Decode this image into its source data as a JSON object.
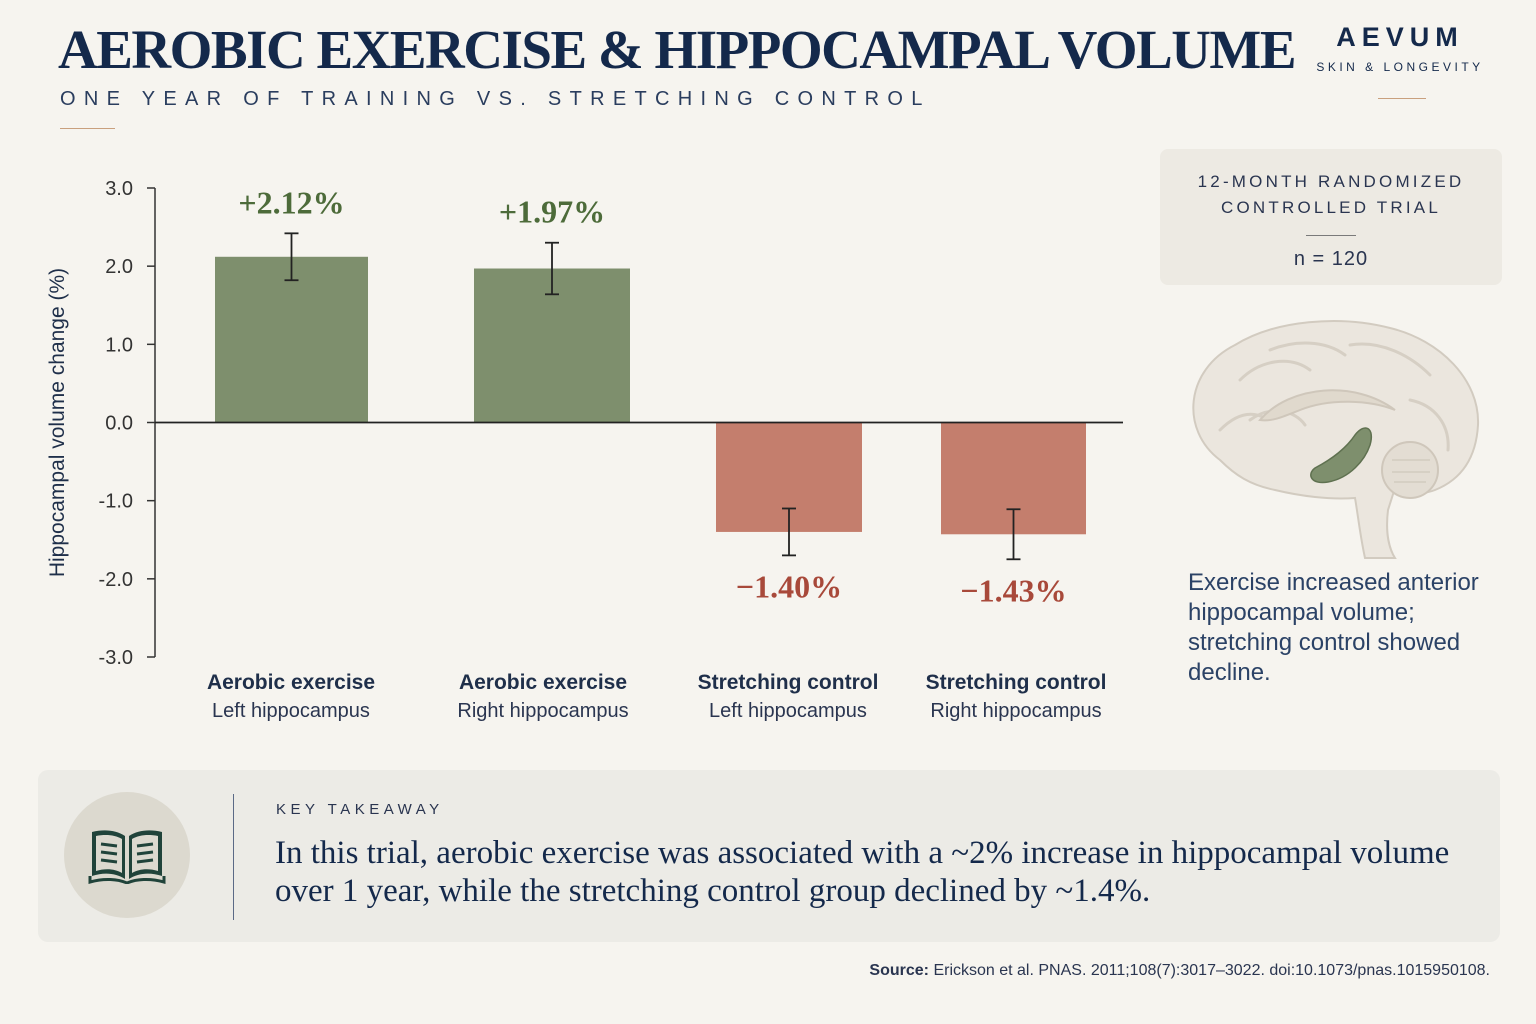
{
  "header": {
    "title": "AEROBIC EXERCISE & HIPPOCAMPAL VOLUME",
    "subtitle": "ONE YEAR OF TRAINING VS. STRETCHING CONTROL"
  },
  "brand": {
    "name": "AEVUM",
    "tagline": "SKIN & LONGEVITY"
  },
  "chart_data": {
    "type": "bar",
    "ylabel": "Hippocampal volume change (%)",
    "ylim": [
      -3.0,
      3.0
    ],
    "yticks": [
      "3.0",
      "2.0",
      "1.0",
      "0.0",
      "-1.0",
      "-2.0",
      "-3.0"
    ],
    "grid": false,
    "bars": [
      {
        "group": "Aerobic exercise",
        "region": "Left hippocampus",
        "value": 2.12,
        "error": 0.3,
        "label": "+2.12%"
      },
      {
        "group": "Aerobic exercise",
        "region": "Right hippocampus",
        "value": 1.97,
        "error": 0.33,
        "label": "+1.97%"
      },
      {
        "group": "Stretching control",
        "region": "Left hippocampus",
        "value": -1.4,
        "error": 0.3,
        "label": "−1.40%"
      },
      {
        "group": "Stretching control",
        "region": "Right hippocampus",
        "value": -1.43,
        "error": 0.32,
        "label": "−1.43%"
      }
    ],
    "colors": {
      "positive": "#7e8f6d",
      "negative": "#c47e6d",
      "positive_label": "#4d6b3a",
      "negative_label": "#a8493a"
    }
  },
  "trial": {
    "title": "12-MONTH RANDOMIZED CONTROLLED TRIAL",
    "n": "n = 120"
  },
  "side_note": "Exercise increased anterior hippocampal volume; stretching control showed decline.",
  "takeaway": {
    "icon": "open-book-icon",
    "label": "KEY TAKEAWAY",
    "text": "In this trial, aerobic exercise was associated with a ~2% increase in hippocampal volume over 1 year, while the stretching control group declined by ~1.4%."
  },
  "source": {
    "label": "Source:",
    "text": "Erickson et al. PNAS. 2011;108(7):3017–3022. doi:10.1073/pnas.1015950108."
  }
}
